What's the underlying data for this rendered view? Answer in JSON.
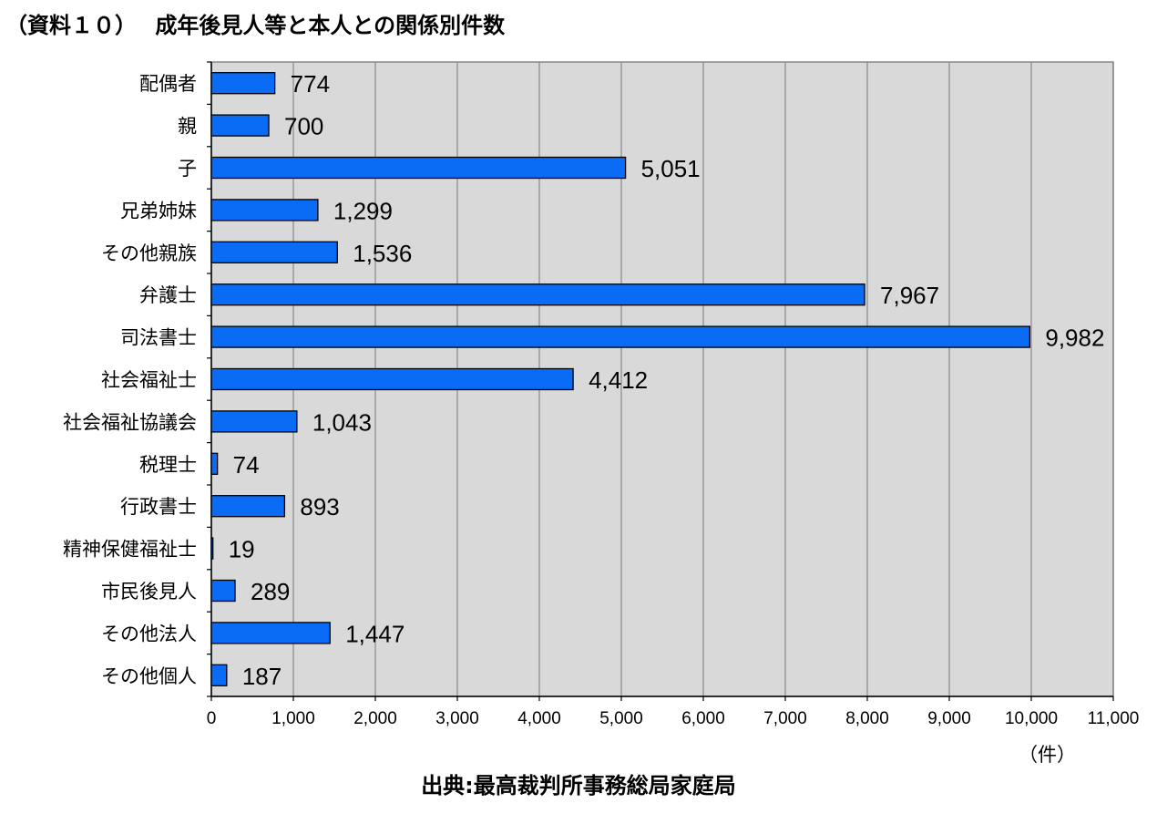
{
  "title": "（資料１０）　 成年後見人等と本人との関係別件数",
  "unit_label": "（件）",
  "source": "出典:最高裁判所事務総局家庭局",
  "colors": {
    "bar": "#0a6cf5",
    "plot_bg": "#d9d9d9",
    "grid": "#999999"
  },
  "chart_data": {
    "type": "bar",
    "orientation": "horizontal",
    "categories": [
      "配偶者",
      "親",
      "子",
      "兄弟姉妹",
      "その他親族",
      "弁護士",
      "司法書士",
      "社会福祉士",
      "社会福祉協議会",
      "税理士",
      "行政書士",
      "精神保健福祉士",
      "市民後見人",
      "その他法人",
      "その他個人"
    ],
    "values": [
      774,
      700,
      5051,
      1299,
      1536,
      7967,
      9982,
      4412,
      1043,
      74,
      893,
      19,
      289,
      1447,
      187
    ],
    "value_labels": [
      "774",
      "700",
      "5,051",
      "1,299",
      "1,536",
      "7,967",
      "9,982",
      "4,412",
      "1,043",
      "74",
      "893",
      "19",
      "289",
      "1,447",
      "187"
    ],
    "xlim": [
      0,
      11000
    ],
    "xticks": [
      "0",
      "1,000",
      "2,000",
      "3,000",
      "4,000",
      "5,000",
      "6,000",
      "7,000",
      "8,000",
      "9,000",
      "10,000",
      "11,000"
    ],
    "grid": true
  }
}
